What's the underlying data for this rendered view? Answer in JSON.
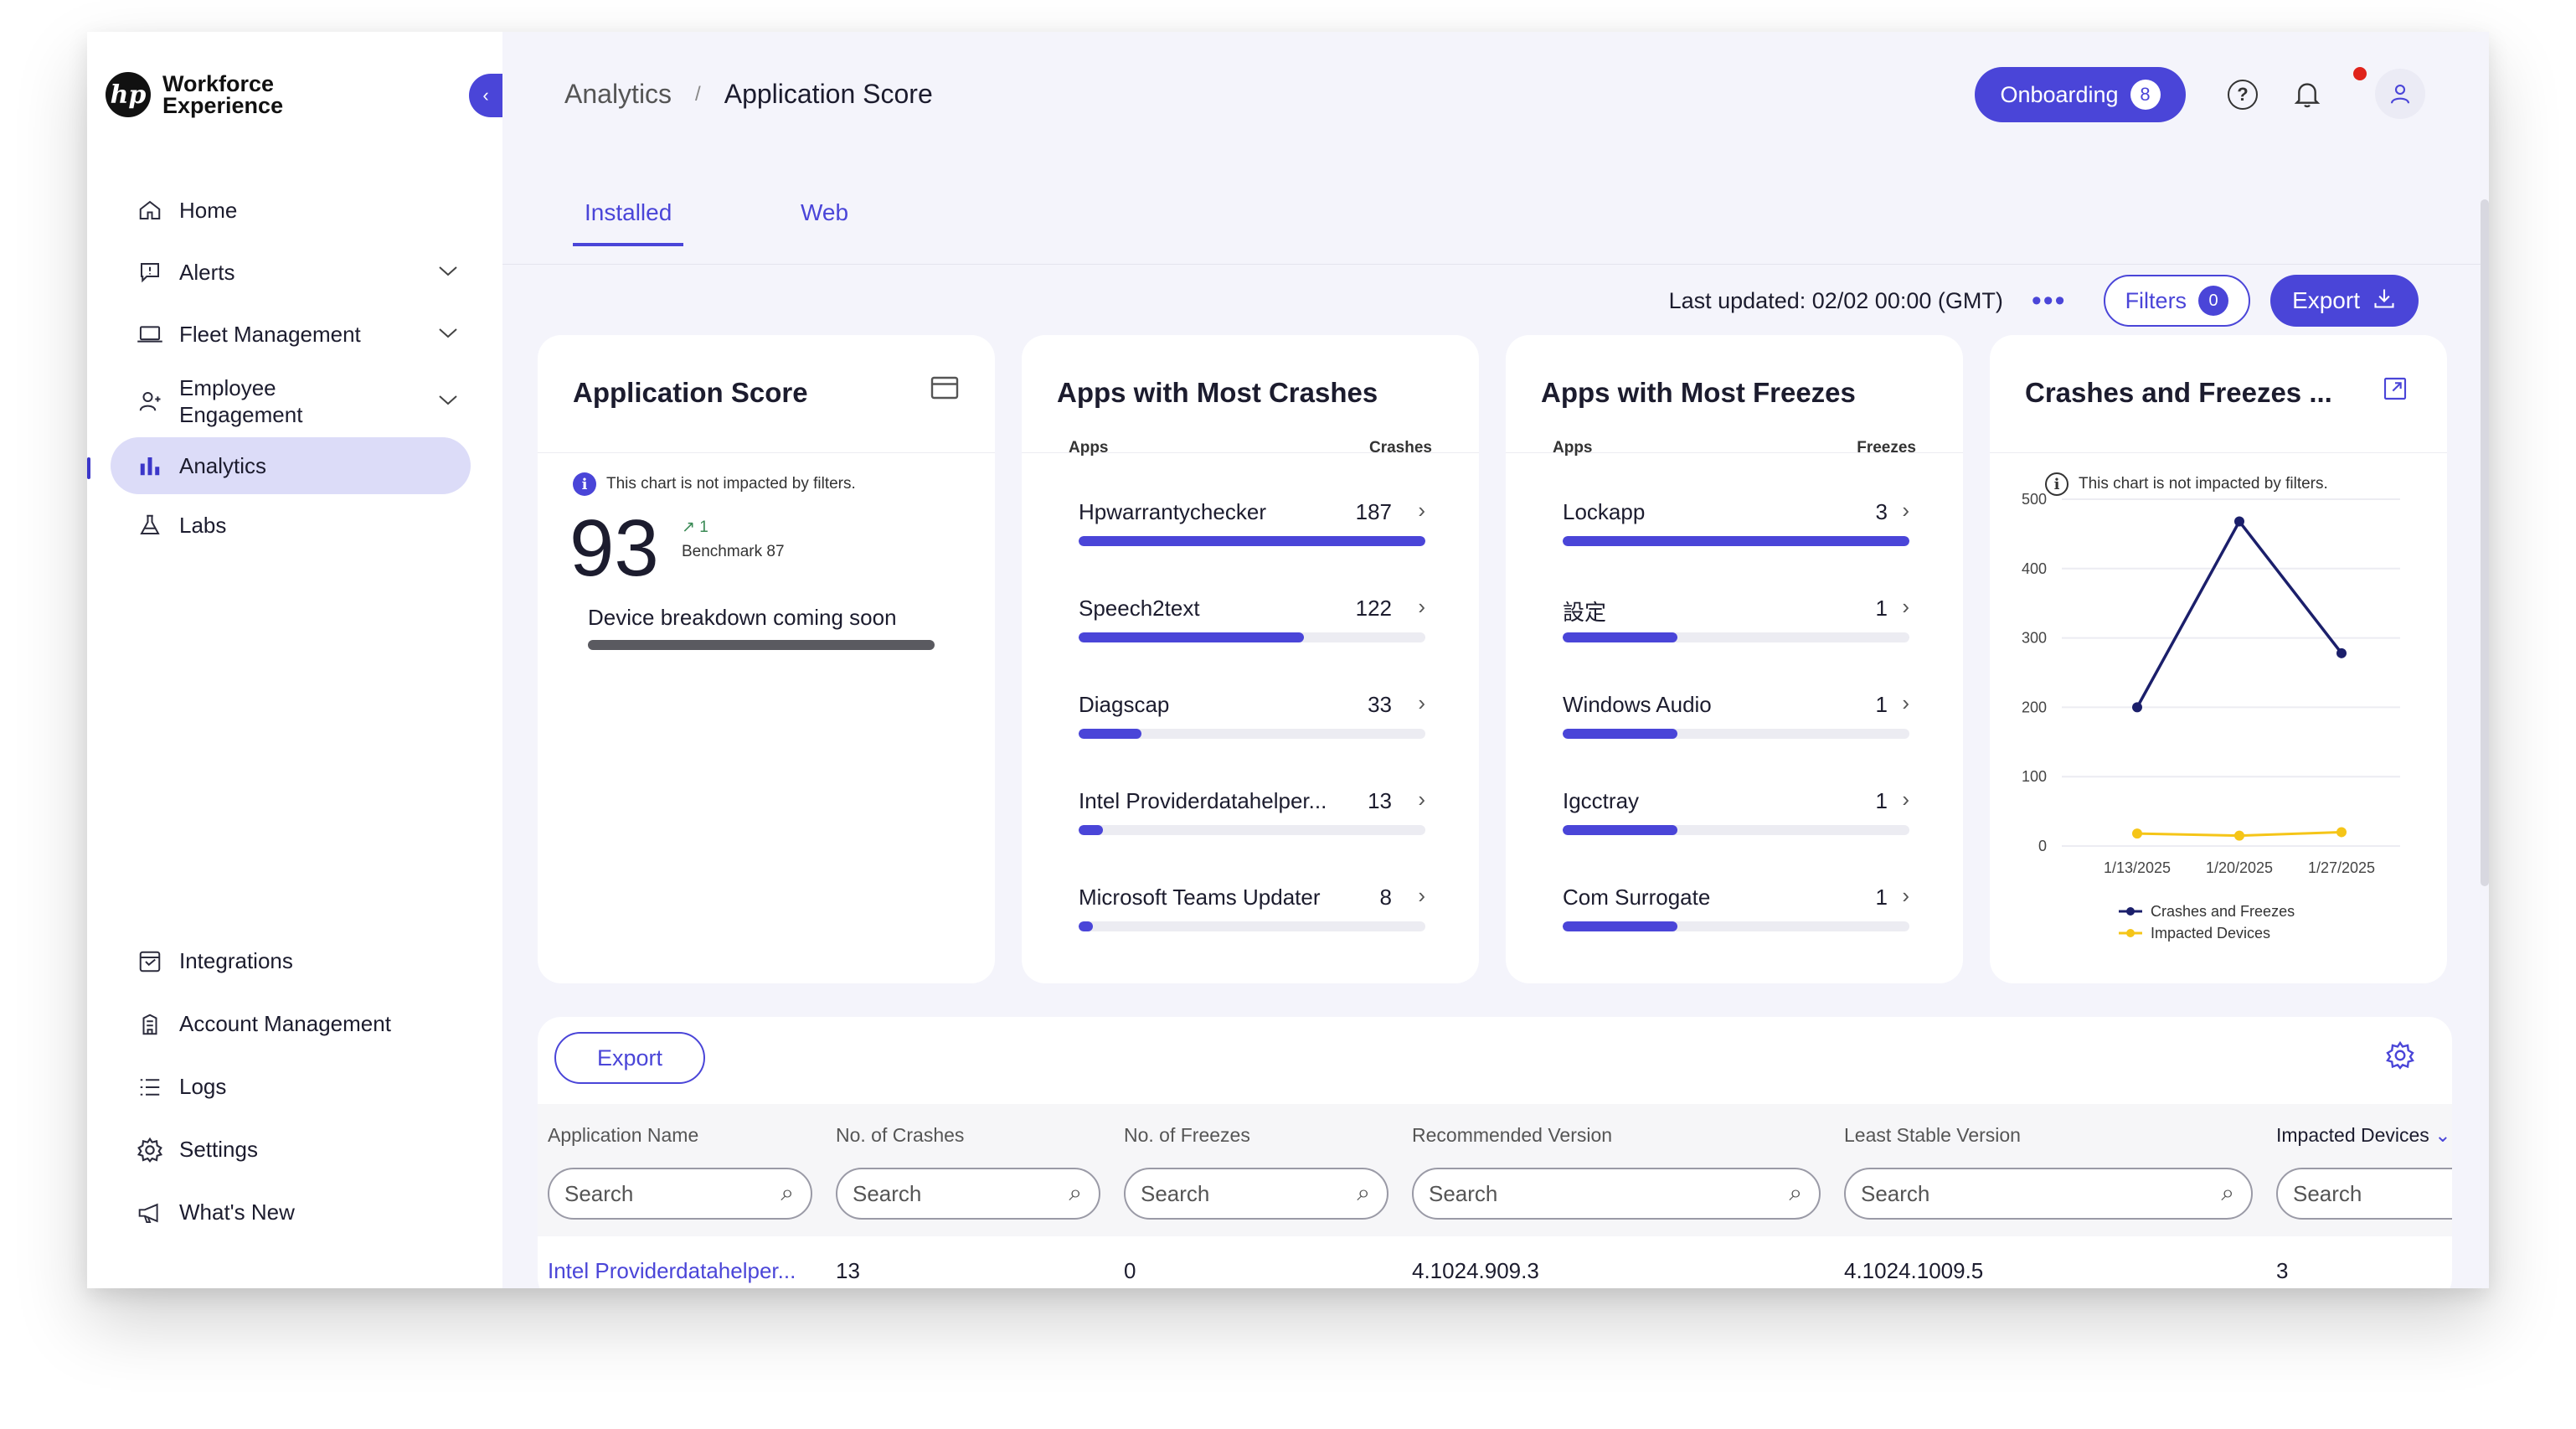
{
  "app": {
    "logo_mark": "hp",
    "logo_line1": "Workforce",
    "logo_line2": "Experience"
  },
  "sidebar": {
    "items": [
      {
        "label": "Home",
        "icon": "home-icon"
      },
      {
        "label": "Alerts",
        "icon": "alert-icon",
        "expandable": true
      },
      {
        "label": "Fleet Management",
        "icon": "laptop-icon",
        "expandable": true
      },
      {
        "label": "Employee Engagement",
        "icon": "person-icon",
        "expandable": true
      },
      {
        "label": "Analytics",
        "icon": "bar-chart-icon",
        "active": true
      },
      {
        "label": "Labs",
        "icon": "flask-icon"
      }
    ],
    "bottom_items": [
      {
        "label": "Integrations",
        "icon": "integrations-icon"
      },
      {
        "label": "Account Management",
        "icon": "building-icon"
      },
      {
        "label": "Logs",
        "icon": "list-icon"
      },
      {
        "label": "Settings",
        "icon": "gear-icon"
      },
      {
        "label": "What's New",
        "icon": "megaphone-icon"
      }
    ]
  },
  "header": {
    "breadcrumb_parent": "Analytics",
    "breadcrumb_sep": "/",
    "breadcrumb_current": "Application Score",
    "onboarding_label": "Onboarding",
    "onboarding_count": "8"
  },
  "tabs": [
    {
      "label": "Installed",
      "active": true
    },
    {
      "label": "Web",
      "active": false
    }
  ],
  "toolbar": {
    "last_updated": "Last updated: 02/02 00:00 (GMT)",
    "more": "•••",
    "filters_label": "Filters",
    "filters_count": "0",
    "export_label": "Export"
  },
  "score_card": {
    "title": "Application Score",
    "info": "This chart is not impacted by filters.",
    "score": "93",
    "delta": "↗ 1",
    "benchmark": "Benchmark 87",
    "breakdown": "Device breakdown coming soon"
  },
  "crashes_card": {
    "title": "Apps with Most Crashes",
    "col_apps": "Apps",
    "col_value": "Crashes",
    "rows": [
      {
        "name": "Hpwarrantychecker",
        "value": "187",
        "fill": 1.0
      },
      {
        "name": "Speech2text",
        "value": "122",
        "fill": 0.65
      },
      {
        "name": "Diagscap",
        "value": "33",
        "fill": 0.18
      },
      {
        "name": "Intel Providerdatahelper...",
        "value": "13",
        "fill": 0.07
      },
      {
        "name": "Microsoft Teams Updater",
        "value": "8",
        "fill": 0.04
      }
    ]
  },
  "freezes_card": {
    "title": "Apps with Most Freezes",
    "col_apps": "Apps",
    "col_value": "Freezes",
    "rows": [
      {
        "name": "Lockapp",
        "value": "3",
        "fill": 1.0
      },
      {
        "name": "設定",
        "value": "1",
        "fill": 0.33
      },
      {
        "name": "Windows Audio",
        "value": "1",
        "fill": 0.33
      },
      {
        "name": "Igcctray",
        "value": "1",
        "fill": 0.33
      },
      {
        "name": "Com Surrogate",
        "value": "1",
        "fill": 0.33
      }
    ]
  },
  "chart_card": {
    "title": "Crashes and Freezes ...",
    "info": "This chart is not impacted by filters."
  },
  "chart_data": {
    "type": "line",
    "categories": [
      "1/13/2025",
      "1/20/2025",
      "1/27/2025"
    ],
    "series": [
      {
        "name": "Crashes and Freezes",
        "values": [
          200,
          468,
          278
        ],
        "color": "#1b1f6b"
      },
      {
        "name": "Impacted Devices",
        "values": [
          18,
          15,
          20
        ],
        "color": "#f5c518"
      }
    ],
    "yticks": [
      "0",
      "100",
      "200",
      "300",
      "400",
      "500"
    ],
    "ylim": [
      0,
      500
    ],
    "grid": true,
    "legend": "bottom"
  },
  "table": {
    "export_label": "Export",
    "columns": [
      "Application Name",
      "No. of Crashes",
      "No. of Freezes",
      "Recommended Version",
      "Least Stable Version",
      "Impacted Devices"
    ],
    "search_placeholder": "Search",
    "rows": [
      [
        "Intel Providerdatahelper...",
        "13",
        "0",
        "4.1024.909.3",
        "4.1024.1009.5",
        "3"
      ]
    ]
  },
  "colors": {
    "accent": "#4a45d8",
    "active_nav": "#dcdcf8",
    "background": "#f4f4fb"
  }
}
